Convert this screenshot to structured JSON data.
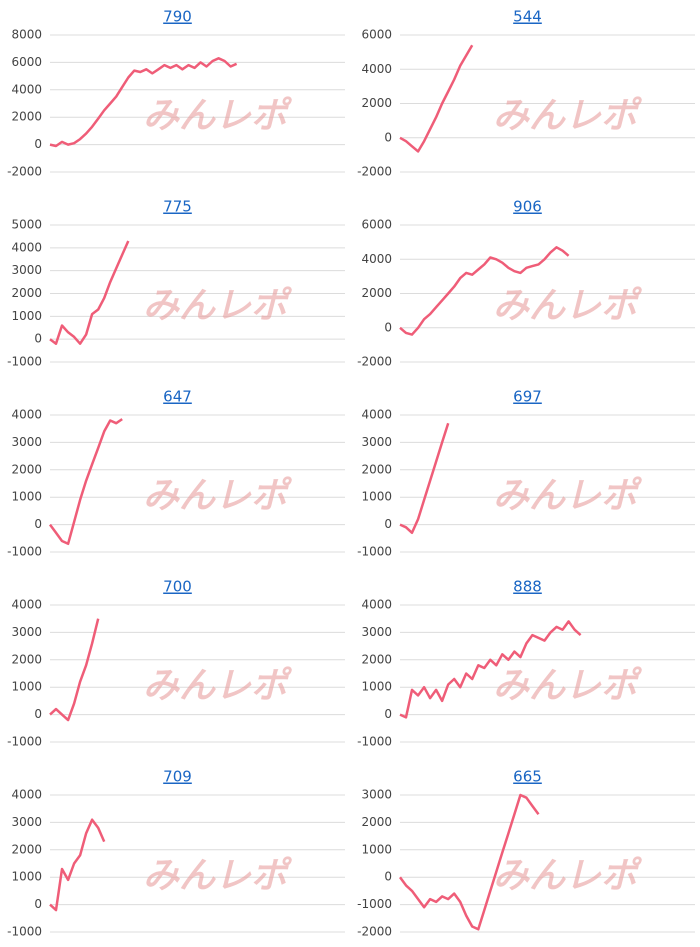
{
  "watermark": "みんレポ",
  "chart_data": [
    {
      "type": "line",
      "title": "790",
      "ylim": [
        -2000,
        8000
      ],
      "yticks": [
        -2000,
        0,
        2000,
        4000,
        6000,
        8000
      ],
      "grid": true,
      "color": "#ef5d78",
      "values": [
        0,
        -100,
        200,
        0,
        100,
        400,
        800,
        1300,
        1900,
        2500,
        3000,
        3500,
        4200,
        4900,
        5400,
        5300,
        5500,
        5200,
        5500,
        5800,
        5600,
        5800,
        5500,
        5800,
        5600,
        6000,
        5700,
        6100,
        6300,
        6100,
        5700,
        5900,
        null,
        null,
        null,
        null,
        null,
        null,
        null,
        null,
        null,
        null,
        null,
        null,
        null,
        null,
        null,
        null,
        null,
        null
      ]
    },
    {
      "type": "line",
      "title": "544",
      "ylim": [
        -2000,
        6000
      ],
      "yticks": [
        -2000,
        0,
        2000,
        4000,
        6000
      ],
      "grid": true,
      "color": "#ef5d78",
      "values": [
        0,
        -200,
        -500,
        -800,
        -200,
        500,
        1200,
        2000,
        2700,
        3400,
        4200,
        4800,
        5400,
        null,
        null,
        null,
        null,
        null,
        null,
        null,
        null,
        null,
        null,
        null,
        null,
        null,
        null,
        null,
        null,
        null,
        null,
        null,
        null,
        null,
        null,
        null,
        null,
        null,
        null,
        null,
        null,
        null,
        null,
        null,
        null,
        null,
        null,
        null,
        null,
        null
      ]
    },
    {
      "type": "line",
      "title": "775",
      "ylim": [
        -1000,
        5000
      ],
      "yticks": [
        -1000,
        0,
        1000,
        2000,
        3000,
        4000,
        5000
      ],
      "grid": true,
      "color": "#ef5d78",
      "values": [
        0,
        -200,
        600,
        300,
        100,
        -200,
        200,
        1100,
        1300,
        1800,
        2500,
        3100,
        3700,
        4300,
        null,
        null,
        null,
        null,
        null,
        null,
        null,
        null,
        null,
        null,
        null,
        null,
        null,
        null,
        null,
        null,
        null,
        null,
        null,
        null,
        null,
        null,
        null,
        null,
        null,
        null,
        null,
        null,
        null,
        null,
        null,
        null,
        null,
        null,
        null,
        null
      ]
    },
    {
      "type": "line",
      "title": "906",
      "ylim": [
        -2000,
        6000
      ],
      "yticks": [
        -2000,
        0,
        2000,
        4000,
        6000
      ],
      "grid": true,
      "color": "#ef5d78",
      "values": [
        0,
        -300,
        -400,
        0,
        500,
        800,
        1200,
        1600,
        2000,
        2400,
        2900,
        3200,
        3100,
        3400,
        3700,
        4100,
        4000,
        3800,
        3500,
        3300,
        3200,
        3500,
        3600,
        3700,
        4000,
        4400,
        4700,
        4500,
        4200,
        null,
        null,
        null,
        null,
        null,
        null,
        null,
        null,
        null,
        null,
        null,
        null,
        null,
        null,
        null,
        null,
        null,
        null,
        null,
        null,
        null
      ]
    },
    {
      "type": "line",
      "title": "647",
      "ylim": [
        -1000,
        4000
      ],
      "yticks": [
        -1000,
        0,
        1000,
        2000,
        3000,
        4000
      ],
      "grid": true,
      "color": "#ef5d78",
      "values": [
        0,
        -300,
        -600,
        -700,
        100,
        900,
        1600,
        2200,
        2800,
        3400,
        3800,
        3700,
        3850,
        null,
        null,
        null,
        null,
        null,
        null,
        null,
        null,
        null,
        null,
        null,
        null,
        null,
        null,
        null,
        null,
        null,
        null,
        null,
        null,
        null,
        null,
        null,
        null,
        null,
        null,
        null,
        null,
        null,
        null,
        null,
        null,
        null,
        null,
        null,
        null,
        null
      ]
    },
    {
      "type": "line",
      "title": "697",
      "ylim": [
        -1000,
        4000
      ],
      "yticks": [
        -1000,
        0,
        1000,
        2000,
        3000,
        4000
      ],
      "grid": true,
      "color": "#ef5d78",
      "values": [
        0,
        -100,
        -300,
        200,
        900,
        1600,
        2300,
        3000,
        3700,
        null,
        null,
        null,
        null,
        null,
        null,
        null,
        null,
        null,
        null,
        null,
        null,
        null,
        null,
        null,
        null,
        null,
        null,
        null,
        null,
        null,
        null,
        null,
        null,
        null,
        null,
        null,
        null,
        null,
        null,
        null,
        null,
        null,
        null,
        null,
        null,
        null,
        null,
        null,
        null,
        null
      ]
    },
    {
      "type": "line",
      "title": "700",
      "ylim": [
        -1000,
        4000
      ],
      "yticks": [
        -1000,
        0,
        1000,
        2000,
        3000,
        4000
      ],
      "grid": true,
      "color": "#ef5d78",
      "values": [
        0,
        200,
        0,
        -200,
        400,
        1200,
        1800,
        2600,
        3500,
        null,
        null,
        null,
        null,
        null,
        null,
        null,
        null,
        null,
        null,
        null,
        null,
        null,
        null,
        null,
        null,
        null,
        null,
        null,
        null,
        null,
        null,
        null,
        null,
        null,
        null,
        null,
        null,
        null,
        null,
        null,
        null,
        null,
        null,
        null,
        null,
        null,
        null,
        null,
        null,
        null
      ]
    },
    {
      "type": "line",
      "title": "888",
      "ylim": [
        -1000,
        4000
      ],
      "yticks": [
        -1000,
        0,
        1000,
        2000,
        3000,
        4000
      ],
      "grid": true,
      "color": "#ef5d78",
      "values": [
        0,
        -100,
        900,
        700,
        1000,
        600,
        900,
        500,
        1100,
        1300,
        1000,
        1500,
        1300,
        1800,
        1700,
        2000,
        1800,
        2200,
        2000,
        2300,
        2100,
        2600,
        2900,
        2800,
        2700,
        3000,
        3200,
        3100,
        3400,
        3100,
        2900,
        null,
        null,
        null,
        null,
        null,
        null,
        null,
        null,
        null,
        null,
        null,
        null,
        null,
        null,
        null,
        null,
        null,
        null,
        null
      ]
    },
    {
      "type": "line",
      "title": "709",
      "ylim": [
        -1000,
        4000
      ],
      "yticks": [
        -1000,
        0,
        1000,
        2000,
        3000,
        4000
      ],
      "grid": true,
      "color": "#ef5d78",
      "values": [
        0,
        -200,
        1300,
        900,
        1500,
        1800,
        2600,
        3100,
        2800,
        2300,
        null,
        null,
        null,
        null,
        null,
        null,
        null,
        null,
        null,
        null,
        null,
        null,
        null,
        null,
        null,
        null,
        null,
        null,
        null,
        null,
        null,
        null,
        null,
        null,
        null,
        null,
        null,
        null,
        null,
        null,
        null,
        null,
        null,
        null,
        null,
        null,
        null,
        null,
        null,
        null
      ]
    },
    {
      "type": "line",
      "title": "665",
      "ylim": [
        -2000,
        3000
      ],
      "yticks": [
        -2000,
        -1000,
        0,
        1000,
        2000,
        3000
      ],
      "grid": true,
      "color": "#ef5d78",
      "values": [
        0,
        -300,
        -500,
        -800,
        -1100,
        -800,
        -900,
        -700,
        -800,
        -600,
        -900,
        -1400,
        -1800,
        -1900,
        -1200,
        -500,
        200,
        900,
        1600,
        2300,
        3000,
        2900,
        2600,
        2300,
        null,
        null,
        null,
        null,
        null,
        null,
        null,
        null,
        null,
        null,
        null,
        null,
        null,
        null,
        null,
        null,
        null,
        null,
        null,
        null,
        null,
        null,
        null,
        null,
        null,
        null
      ]
    }
  ]
}
